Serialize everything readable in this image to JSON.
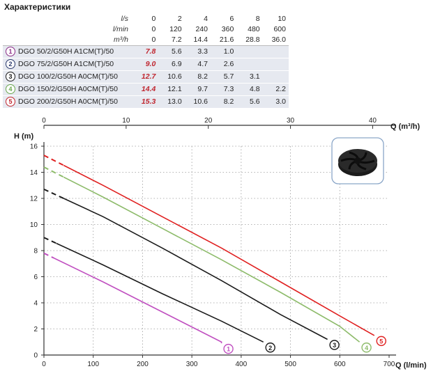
{
  "title": "Характеристики",
  "table": {
    "units": [
      {
        "label": "l/s",
        "values": [
          "0",
          "2",
          "4",
          "6",
          "8",
          "10"
        ]
      },
      {
        "label": "l/min",
        "values": [
          "0",
          "120",
          "240",
          "360",
          "480",
          "600"
        ]
      },
      {
        "label": "m³/h",
        "values": [
          "0",
          "7.2",
          "14.4",
          "21.6",
          "28.8",
          "36.0"
        ]
      }
    ],
    "models": [
      {
        "num": "1",
        "name": "DGO 50/2/G50H A1CM(T)/50",
        "values": [
          "7.8",
          "5.6",
          "3.3",
          "1.0",
          "",
          ""
        ],
        "color": "#8b2c87"
      },
      {
        "num": "2",
        "name": "DGO 75/2/G50H A1CM(T)/50",
        "values": [
          "9.0",
          "6.9",
          "4.7",
          "2.6",
          "",
          ""
        ],
        "color": "#2b3a6e"
      },
      {
        "num": "3",
        "name": "DGO 100/2/G50H A0CM(T)/50",
        "values": [
          "12.7",
          "10.6",
          "8.2",
          "5.7",
          "3.1",
          ""
        ],
        "color": "#1a1a1a"
      },
      {
        "num": "4",
        "name": "DGO 150/2/G50H A0CM(T)/50",
        "values": [
          "14.4",
          "12.1",
          "9.7",
          "7.3",
          "4.8",
          "2.2"
        ],
        "color": "#6aa84f"
      },
      {
        "num": "5",
        "name": "DGO 200/2/G50H A0CM(T)/50",
        "values": [
          "15.3",
          "13.0",
          "10.6",
          "8.2",
          "5.6",
          "3.0"
        ],
        "color": "#c0262f"
      }
    ]
  },
  "chart_data": {
    "type": "line",
    "ylabel": "H (m)",
    "xlabel": "Q (l/min)",
    "x2label": "Q (m³/h)",
    "xlim": [
      0,
      700
    ],
    "ylim": [
      0,
      16
    ],
    "x2lim": [
      0,
      42
    ],
    "xticks": [
      0,
      100,
      200,
      300,
      400,
      500,
      600,
      700
    ],
    "yticks": [
      0,
      2,
      4,
      6,
      8,
      10,
      12,
      14,
      16
    ],
    "x2ticks": [
      0,
      10,
      20,
      30,
      40
    ],
    "grid": true,
    "series": [
      {
        "marker": "1",
        "color": "#c04fc0",
        "x": [
          0,
          120,
          240,
          360
        ],
        "y": [
          7.8,
          5.6,
          3.3,
          1.0
        ],
        "dashed_to_x": 20,
        "end_x": 360,
        "end_y": 0.9
      },
      {
        "marker": "2",
        "color": "#1a1a1a",
        "x": [
          0,
          120,
          240,
          360
        ],
        "y": [
          9.0,
          6.9,
          4.7,
          2.6
        ],
        "dashed_to_x": 25,
        "end_x": 445,
        "end_y": 1.0
      },
      {
        "marker": "3",
        "color": "#1a1a1a",
        "x": [
          0,
          120,
          240,
          360,
          480
        ],
        "y": [
          12.7,
          10.6,
          8.2,
          5.7,
          3.1
        ],
        "dashed_to_x": 40,
        "end_x": 575,
        "end_y": 1.2
      },
      {
        "marker": "4",
        "color": "#8dbb6a",
        "x": [
          0,
          120,
          240,
          360,
          480,
          600
        ],
        "y": [
          14.4,
          12.1,
          9.7,
          7.3,
          4.8,
          2.2
        ],
        "dashed_to_x": 40,
        "end_x": 640,
        "end_y": 1.0
      },
      {
        "marker": "5",
        "color": "#e02020",
        "x": [
          0,
          120,
          240,
          360,
          480,
          600
        ],
        "y": [
          15.3,
          13.0,
          10.6,
          8.2,
          5.6,
          3.0
        ],
        "dashed_to_x": 40,
        "end_x": 670,
        "end_y": 1.5
      }
    ]
  }
}
